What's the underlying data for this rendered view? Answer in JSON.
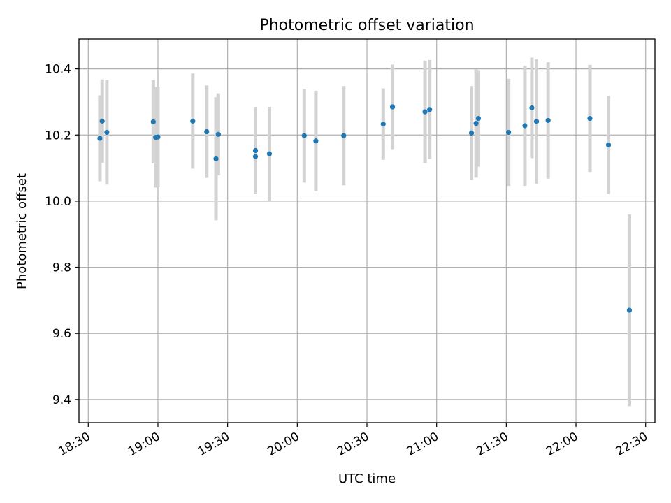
{
  "chart_data": {
    "type": "scatter",
    "title": "Photometric offset variation",
    "xlabel": "UTC time",
    "ylabel": "Photometric offset",
    "x_ticks": [
      "18:30",
      "19:00",
      "19:30",
      "20:00",
      "20:30",
      "21:00",
      "21:30",
      "22:00",
      "22:30"
    ],
    "y_ticks": [
      "9.4",
      "9.6",
      "9.8",
      "10.0",
      "10.2",
      "10.4"
    ],
    "xlim": [
      "18:26",
      "22:34"
    ],
    "ylim": [
      9.33,
      10.49
    ],
    "grid": true,
    "colors": {
      "point": "#1f77b4",
      "error_bar": "#d3d3d3"
    },
    "series": [
      {
        "points": [
          {
            "x": "18:35",
            "y": 10.19,
            "yerr": 0.13
          },
          {
            "x": "18:36",
            "y": 10.242,
            "yerr": 0.126
          },
          {
            "x": "18:38",
            "y": 10.208,
            "yerr": 0.158
          },
          {
            "x": "18:58",
            "y": 10.24,
            "yerr": 0.126
          },
          {
            "x": "18:59",
            "y": 10.193,
            "yerr": 0.152
          },
          {
            "x": "19:00",
            "y": 10.194,
            "yerr": 0.152
          },
          {
            "x": "19:15",
            "y": 10.242,
            "yerr": 0.144
          },
          {
            "x": "19:21",
            "y": 10.21,
            "yerr": 0.14
          },
          {
            "x": "19:25",
            "y": 10.128,
            "yerr": 0.186
          },
          {
            "x": "19:26",
            "y": 10.202,
            "yerr": 0.124
          },
          {
            "x": "19:42",
            "y": 10.153,
            "yerr": 0.132
          },
          {
            "x": "19:42",
            "y": 10.135,
            "yerr": 0.11
          },
          {
            "x": "19:48",
            "y": 10.143,
            "yerr": 0.142
          },
          {
            "x": "20:03",
            "y": 10.198,
            "yerr": 0.142
          },
          {
            "x": "20:08",
            "y": 10.182,
            "yerr": 0.152
          },
          {
            "x": "20:20",
            "y": 10.198,
            "yerr": 0.15
          },
          {
            "x": "20:37",
            "y": 10.233,
            "yerr": 0.108
          },
          {
            "x": "20:41",
            "y": 10.285,
            "yerr": 0.128
          },
          {
            "x": "20:55",
            "y": 10.27,
            "yerr": 0.155
          },
          {
            "x": "20:57",
            "y": 10.277,
            "yerr": 0.15
          },
          {
            "x": "21:15",
            "y": 10.206,
            "yerr": 0.142
          },
          {
            "x": "21:17",
            "y": 10.235,
            "yerr": 0.164
          },
          {
            "x": "21:18",
            "y": 10.25,
            "yerr": 0.146
          },
          {
            "x": "21:31",
            "y": 10.208,
            "yerr": 0.162
          },
          {
            "x": "21:38",
            "y": 10.228,
            "yerr": 0.182
          },
          {
            "x": "21:41",
            "y": 10.282,
            "yerr": 0.152
          },
          {
            "x": "21:43",
            "y": 10.241,
            "yerr": 0.188
          },
          {
            "x": "21:48",
            "y": 10.244,
            "yerr": 0.176
          },
          {
            "x": "22:06",
            "y": 10.25,
            "yerr": 0.162
          },
          {
            "x": "22:14",
            "y": 10.17,
            "yerr": 0.148
          },
          {
            "x": "22:23",
            "y": 9.67,
            "yerr": 0.29
          }
        ]
      }
    ]
  }
}
